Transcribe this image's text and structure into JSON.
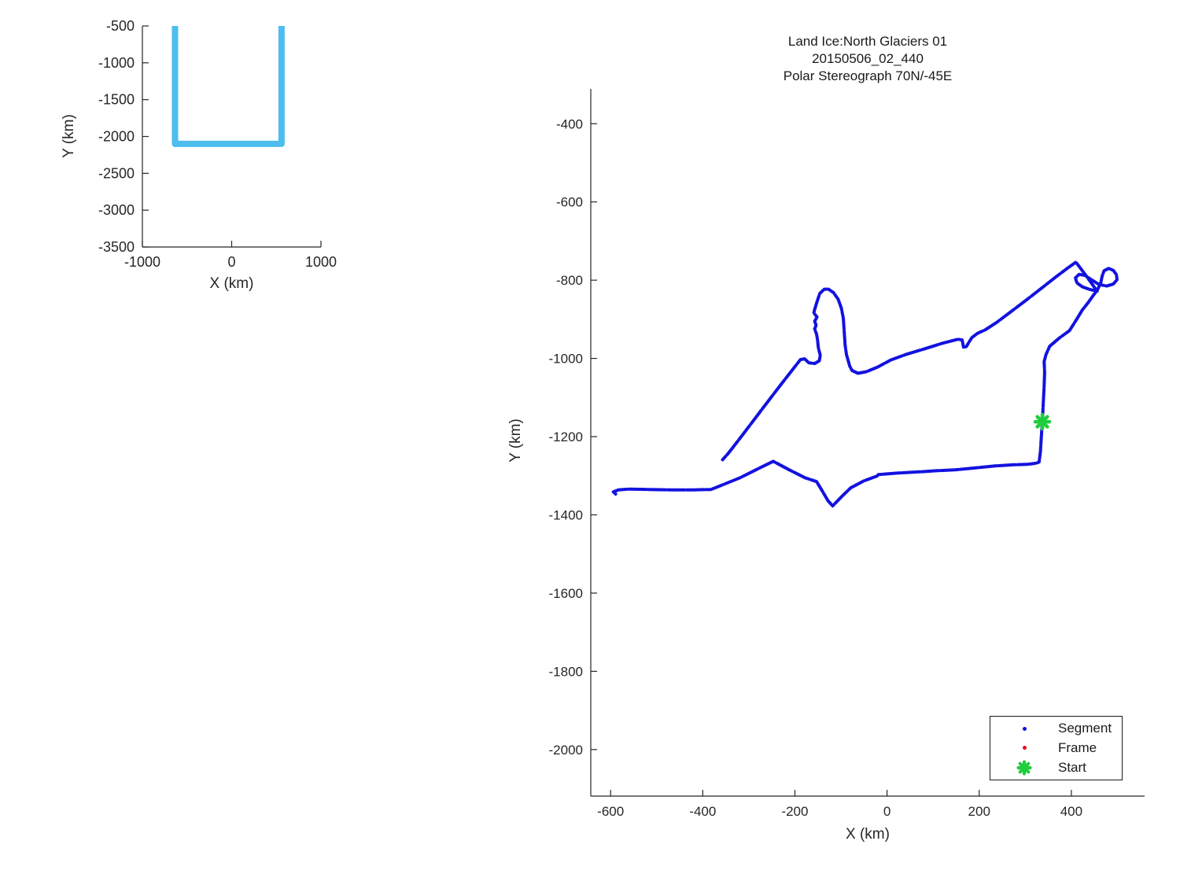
{
  "figure": {
    "background": "#ffffff",
    "text_color": "#262626",
    "axis_color": "#262626",
    "track_color": "#1212e0",
    "coverage_color": "#4dbeee",
    "start_color": "#1fcd3d",
    "frame_color": "#e8101e"
  },
  "legend": {
    "entries": [
      {
        "label": "Segment",
        "marker": "dot",
        "color": "#1212e0"
      },
      {
        "label": "Frame",
        "marker": "dot",
        "color": "#e8101e"
      },
      {
        "label": "Start",
        "marker": "star",
        "color": "#1fcd3d"
      }
    ]
  },
  "chart_data": [
    {
      "id": "overview-inset",
      "type": "line",
      "title": "",
      "xlabel": "X (km)",
      "ylabel": "Y (km)",
      "xlim": [
        -1000,
        1000
      ],
      "ylim": [
        -3500,
        -500
      ],
      "xticks": [
        -1000,
        0,
        1000
      ],
      "yticks": [
        -500,
        -1000,
        -1500,
        -2000,
        -2500,
        -3000,
        -3500
      ],
      "grid": false,
      "legend_position": "none",
      "series": [
        {
          "name": "view-extent-outline",
          "color": "#4dbeee",
          "width": 8,
          "linecap": "butt",
          "points": [
            [
              -634,
              -500
            ],
            [
              -634,
              -2100
            ],
            [
              559,
              -2100
            ],
            [
              559,
              -500
            ]
          ]
        }
      ]
    },
    {
      "id": "track-map",
      "type": "line",
      "title_lines": [
        "Land Ice:North Glaciers 01",
        "20150506_02_440",
        "Polar Stereograph 70N/-45E"
      ],
      "xlabel": "X (km)",
      "ylabel": "Y (km)",
      "xlim": [
        -643,
        559
      ],
      "ylim": [
        -2119,
        -311
      ],
      "xticks": [
        -600,
        -400,
        -200,
        0,
        200,
        400
      ],
      "yticks": [
        -400,
        -600,
        -800,
        -1000,
        -1200,
        -1400,
        -1600,
        -1800,
        -2000
      ],
      "grid": false,
      "legend_position": "lower right",
      "series": [
        {
          "name": "Segment",
          "color": "#1212e0",
          "width": 4,
          "dash": "22 2.5",
          "linecap": "round",
          "points": [
            [
              -589,
              -1347
            ],
            [
              -594,
              -1341
            ],
            [
              -583,
              -1336
            ],
            [
              -560,
              -1334
            ],
            [
              -520,
              -1335
            ],
            [
              -470,
              -1336
            ],
            [
              -420,
              -1336
            ],
            [
              -382,
              -1335
            ],
            [
              -350,
              -1320
            ],
            [
              -319,
              -1305
            ],
            [
              -283,
              -1284
            ],
            [
              -247,
              -1263
            ],
            [
              -212,
              -1285
            ],
            [
              -178,
              -1305
            ],
            [
              -153,
              -1315
            ],
            [
              -141,
              -1338
            ],
            [
              -128,
              -1364
            ],
            [
              -118,
              -1377
            ],
            [
              -99,
              -1354
            ],
            [
              -79,
              -1331
            ],
            [
              -50,
              -1313
            ],
            [
              -22,
              -1301
            ],
            [
              -19,
              -1297
            ],
            [
              25,
              -1293
            ],
            [
              70,
              -1290
            ],
            [
              110,
              -1287
            ],
            [
              147,
              -1285
            ],
            [
              192,
              -1280
            ],
            [
              235,
              -1275
            ],
            [
              275,
              -1272
            ],
            [
              304,
              -1271
            ],
            [
              323,
              -1268
            ],
            [
              330,
              -1265
            ],
            [
              333,
              -1238
            ],
            [
              335,
              -1198
            ],
            [
              337,
              -1162
            ],
            [
              339,
              -1118
            ],
            [
              341,
              -1070
            ],
            [
              342,
              -1035
            ],
            [
              341,
              -1008
            ],
            [
              345,
              -990
            ],
            [
              353,
              -969
            ],
            [
              374,
              -948
            ],
            [
              396,
              -929
            ],
            [
              410,
              -903
            ],
            [
              424,
              -876
            ],
            [
              436,
              -858
            ],
            [
              447,
              -840
            ],
            [
              457,
              -824
            ],
            [
              464,
              -806
            ],
            [
              467,
              -789
            ],
            [
              471,
              -776
            ],
            [
              481,
              -770
            ],
            [
              491,
              -775
            ],
            [
              498,
              -786
            ],
            [
              499,
              -799
            ],
            [
              491,
              -810
            ],
            [
              477,
              -815
            ],
            [
              460,
              -811
            ],
            [
              445,
              -800
            ],
            [
              430,
              -788
            ],
            [
              417,
              -785
            ],
            [
              409,
              -794
            ],
            [
              412,
              -807
            ],
            [
              424,
              -817
            ],
            [
              441,
              -824
            ],
            [
              456,
              -828
            ],
            [
              436,
              -795
            ],
            [
              422,
              -773
            ],
            [
              410,
              -754
            ],
            [
              392,
              -769
            ],
            [
              366,
              -792
            ],
            [
              338,
              -818
            ],
            [
              302,
              -851
            ],
            [
              264,
              -885
            ],
            [
              238,
              -908
            ],
            [
              213,
              -927
            ],
            [
              196,
              -936
            ],
            [
              184,
              -947
            ],
            [
              178,
              -958
            ],
            [
              172,
              -970
            ],
            [
              166,
              -971
            ],
            [
              163,
              -953
            ],
            [
              154,
              -951
            ],
            [
              118,
              -962
            ],
            [
              80,
              -976
            ],
            [
              41,
              -990
            ],
            [
              8,
              -1004
            ],
            [
              -20,
              -1022
            ],
            [
              -45,
              -1034
            ],
            [
              -63,
              -1038
            ],
            [
              -76,
              -1031
            ],
            [
              -81,
              -1020
            ],
            [
              -88,
              -991
            ],
            [
              -91,
              -966
            ],
            [
              -93,
              -930
            ],
            [
              -95,
              -897
            ],
            [
              -99,
              -872
            ],
            [
              -106,
              -849
            ],
            [
              -116,
              -832
            ],
            [
              -127,
              -823
            ],
            [
              -136,
              -823
            ],
            [
              -146,
              -834
            ],
            [
              -152,
              -855
            ],
            [
              -157,
              -875
            ],
            [
              -159,
              -884
            ],
            [
              -152,
              -894
            ],
            [
              -157,
              -905
            ],
            [
              -154,
              -915
            ],
            [
              -157,
              -925
            ],
            [
              -153,
              -938
            ],
            [
              -151,
              -952
            ],
            [
              -149,
              -973
            ],
            [
              -145,
              -992
            ],
            [
              -147,
              -1006
            ],
            [
              -157,
              -1013
            ],
            [
              -170,
              -1011
            ],
            [
              -179,
              -1001
            ],
            [
              -188,
              -1003
            ],
            [
              -194,
              -1012
            ],
            [
              -233,
              -1071
            ],
            [
              -272,
              -1131
            ],
            [
              -312,
              -1193
            ],
            [
              -344,
              -1242
            ],
            [
              -357,
              -1259
            ]
          ]
        },
        {
          "name": "Frame",
          "color": "#e8101e",
          "width": 4,
          "points": []
        },
        {
          "name": "Start",
          "color": "#1fcd3d",
          "marker": "star",
          "size": 9,
          "points": [
            [
              337,
              -1162
            ]
          ]
        }
      ]
    }
  ]
}
